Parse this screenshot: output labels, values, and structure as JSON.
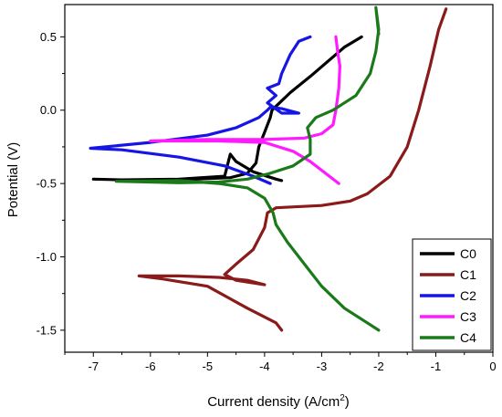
{
  "chart_data": {
    "type": "line",
    "title": "",
    "xlabel_main": "Current density (A/cm",
    "xlabel_sup": "2",
    "xlabel_tail": ")",
    "ylabel": "Potential (V)",
    "xlim": [
      -7.5,
      0
    ],
    "ylim": [
      -1.65,
      0.72
    ],
    "xticks": [
      -7,
      -6,
      -5,
      -4,
      -3,
      -2,
      -1,
      0
    ],
    "yticks": [
      -1.5,
      -1.0,
      -0.5,
      0.0,
      0.5
    ],
    "xtick_labels": [
      "-7",
      "-6",
      "-5",
      "-4",
      "-3",
      "-2",
      "-1",
      "0"
    ],
    "ytick_labels": [
      "-1.5",
      "-1.0",
      "-0.5",
      "0.0",
      "0.5"
    ],
    "grid": false,
    "legend_position": "bottom-right",
    "series": [
      {
        "name": "C0",
        "color": "#000000",
        "points": [
          [
            -3.7,
            -0.48
          ],
          [
            -3.8,
            -0.47
          ],
          [
            -4.2,
            -0.42
          ],
          [
            -4.5,
            -0.35
          ],
          [
            -4.6,
            -0.3
          ],
          [
            -4.7,
            -0.45
          ],
          [
            -5.5,
            -0.47
          ],
          [
            -6.5,
            -0.475
          ],
          [
            -7.0,
            -0.47
          ],
          [
            -6.5,
            -0.475
          ],
          [
            -5.5,
            -0.475
          ],
          [
            -4.6,
            -0.46
          ],
          [
            -4.3,
            -0.43
          ],
          [
            -4.15,
            -0.36
          ],
          [
            -4.1,
            -0.25
          ],
          [
            -4.0,
            -0.15
          ],
          [
            -3.9,
            -0.05
          ],
          [
            -3.87,
            0.0
          ],
          [
            -3.55,
            0.12
          ],
          [
            -3.2,
            0.23
          ],
          [
            -2.9,
            0.33
          ],
          [
            -2.6,
            0.43
          ],
          [
            -2.3,
            0.5
          ]
        ]
      },
      {
        "name": "C1",
        "color": "#8B1A1A",
        "points": [
          [
            -3.7,
            -1.5
          ],
          [
            -3.8,
            -1.45
          ],
          [
            -4.3,
            -1.35
          ],
          [
            -5.0,
            -1.2
          ],
          [
            -5.8,
            -1.15
          ],
          [
            -6.2,
            -1.13
          ],
          [
            -5.5,
            -1.13
          ],
          [
            -4.8,
            -1.14
          ],
          [
            -4.3,
            -1.16
          ],
          [
            -4.0,
            -1.19
          ],
          [
            -4.5,
            -1.16
          ],
          [
            -4.7,
            -1.12
          ],
          [
            -4.5,
            -1.05
          ],
          [
            -4.2,
            -0.95
          ],
          [
            -4.0,
            -0.8
          ],
          [
            -3.95,
            -0.7
          ],
          [
            -3.8,
            -0.665
          ],
          [
            -3.0,
            -0.65
          ],
          [
            -2.5,
            -0.62
          ],
          [
            -2.2,
            -0.57
          ],
          [
            -1.8,
            -0.45
          ],
          [
            -1.5,
            -0.25
          ],
          [
            -1.3,
            0.0
          ],
          [
            -1.1,
            0.3
          ],
          [
            -0.95,
            0.55
          ],
          [
            -0.82,
            0.69
          ]
        ]
      },
      {
        "name": "C2",
        "color": "#1515E6",
        "points": [
          [
            -3.9,
            -0.5
          ],
          [
            -4.2,
            -0.45
          ],
          [
            -4.7,
            -0.38
          ],
          [
            -5.5,
            -0.32
          ],
          [
            -6.5,
            -0.27
          ],
          [
            -7.05,
            -0.26
          ],
          [
            -6.0,
            -0.22
          ],
          [
            -5.0,
            -0.17
          ],
          [
            -4.5,
            -0.12
          ],
          [
            -4.1,
            -0.05
          ],
          [
            -3.95,
            0.0
          ],
          [
            -3.9,
            0.02
          ],
          [
            -3.7,
            0.01
          ],
          [
            -3.4,
            -0.02
          ],
          [
            -3.7,
            -0.02
          ],
          [
            -3.95,
            0.05
          ],
          [
            -3.8,
            0.1
          ],
          [
            -3.95,
            0.15
          ],
          [
            -3.75,
            0.18
          ],
          [
            -3.7,
            0.25
          ],
          [
            -3.55,
            0.38
          ],
          [
            -3.4,
            0.47
          ],
          [
            -3.2,
            0.5
          ]
        ]
      },
      {
        "name": "C3",
        "color": "#FF1AFF",
        "points": [
          [
            -2.7,
            -0.5
          ],
          [
            -2.9,
            -0.44
          ],
          [
            -3.2,
            -0.35
          ],
          [
            -3.5,
            -0.28
          ],
          [
            -4.0,
            -0.22
          ],
          [
            -4.8,
            -0.21
          ],
          [
            -6.0,
            -0.21
          ],
          [
            -5.0,
            -0.2
          ],
          [
            -4.0,
            -0.2
          ],
          [
            -3.3,
            -0.19
          ],
          [
            -3.0,
            -0.16
          ],
          [
            -2.8,
            -0.1
          ],
          [
            -2.75,
            0.0
          ],
          [
            -2.7,
            0.15
          ],
          [
            -2.68,
            0.3
          ],
          [
            -2.72,
            0.4
          ],
          [
            -2.75,
            0.5
          ]
        ]
      },
      {
        "name": "C4",
        "color": "#1A7A1A",
        "points": [
          [
            -2.0,
            -1.5
          ],
          [
            -2.2,
            -1.45
          ],
          [
            -2.6,
            -1.35
          ],
          [
            -3.0,
            -1.2
          ],
          [
            -3.3,
            -1.05
          ],
          [
            -3.6,
            -0.9
          ],
          [
            -3.8,
            -0.78
          ],
          [
            -3.85,
            -0.7
          ],
          [
            -4.0,
            -0.6
          ],
          [
            -4.3,
            -0.53
          ],
          [
            -4.8,
            -0.5
          ],
          [
            -5.5,
            -0.48
          ],
          [
            -6.6,
            -0.485
          ],
          [
            -5.5,
            -0.495
          ],
          [
            -4.8,
            -0.49
          ],
          [
            -4.3,
            -0.47
          ],
          [
            -3.9,
            -0.43
          ],
          [
            -3.5,
            -0.38
          ],
          [
            -3.2,
            -0.3
          ],
          [
            -3.2,
            -0.2
          ],
          [
            -3.25,
            -0.12
          ],
          [
            -3.1,
            -0.05
          ],
          [
            -2.8,
            0.0
          ],
          [
            -2.4,
            0.1
          ],
          [
            -2.15,
            0.25
          ],
          [
            -2.05,
            0.4
          ],
          [
            -2.0,
            0.55
          ],
          [
            -2.05,
            0.7
          ],
          [
            -2.0,
            0.52
          ]
        ]
      }
    ]
  }
}
